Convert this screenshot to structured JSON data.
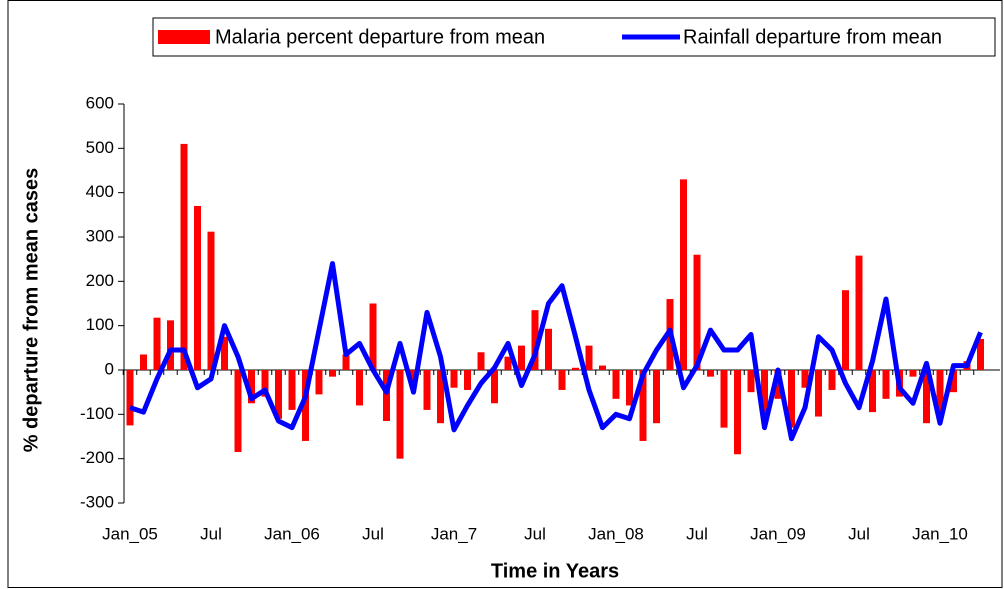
{
  "chart_data": {
    "type": "bar",
    "x_label": "Time in Years",
    "y_label": "% departure from mean  cases",
    "categories": [
      "Jan_05",
      null,
      null,
      null,
      null,
      null,
      "Jul",
      null,
      null,
      null,
      null,
      null,
      "Jan_06",
      null,
      null,
      null,
      null,
      null,
      "Jul",
      null,
      null,
      null,
      null,
      null,
      "Jan_7",
      null,
      null,
      null,
      null,
      null,
      "Jul",
      null,
      null,
      null,
      null,
      null,
      "Jan_08",
      null,
      null,
      null,
      null,
      null,
      "Jul",
      null,
      null,
      null,
      null,
      null,
      "Jan_09",
      null,
      null,
      null,
      null,
      null,
      "Jul",
      null,
      null,
      null,
      null,
      null,
      "Jan_10",
      null,
      null,
      null
    ],
    "series": [
      {
        "name": "Malaria percent departure from mean",
        "type": "bar",
        "color": "#ff0000",
        "values": [
          -125,
          35,
          118,
          112,
          510,
          370,
          312,
          75,
          -185,
          -75,
          -60,
          -110,
          -90,
          -160,
          -55,
          -15,
          35,
          -80,
          150,
          -115,
          -200,
          -30,
          -90,
          -120,
          -40,
          -45,
          40,
          -75,
          30,
          55,
          135,
          93,
          -45,
          5,
          55,
          10,
          -65,
          -80,
          -160,
          -120,
          160,
          430,
          260,
          -15,
          -130,
          -190,
          -50,
          -100,
          -65,
          -130,
          -40,
          -105,
          -45,
          180,
          258,
          -95,
          -65,
          -60,
          -15,
          -120,
          -95,
          -50,
          20,
          70
        ]
      },
      {
        "name": "Rainfall departure from mean",
        "type": "line",
        "color": "#0000ff",
        "values": [
          -85,
          -95,
          -20,
          45,
          45,
          -40,
          -20,
          100,
          30,
          -65,
          -45,
          -115,
          -130,
          -60,
          90,
          240,
          35,
          60,
          0,
          -50,
          60,
          -50,
          130,
          30,
          -135,
          -80,
          -30,
          5,
          60,
          -35,
          35,
          150,
          190,
          75,
          -45,
          -130,
          -100,
          -110,
          -10,
          45,
          90,
          -40,
          10,
          90,
          45,
          45,
          80,
          -130,
          0,
          -155,
          -85,
          75,
          45,
          -30,
          -85,
          20,
          160,
          -40,
          -75,
          15,
          -120,
          10,
          10,
          85
        ]
      }
    ],
    "ylim": [
      -300,
      600
    ],
    "yticks": [
      -300,
      -200,
      -100,
      0,
      100,
      200,
      300,
      400,
      500,
      600
    ],
    "legend": "top"
  }
}
